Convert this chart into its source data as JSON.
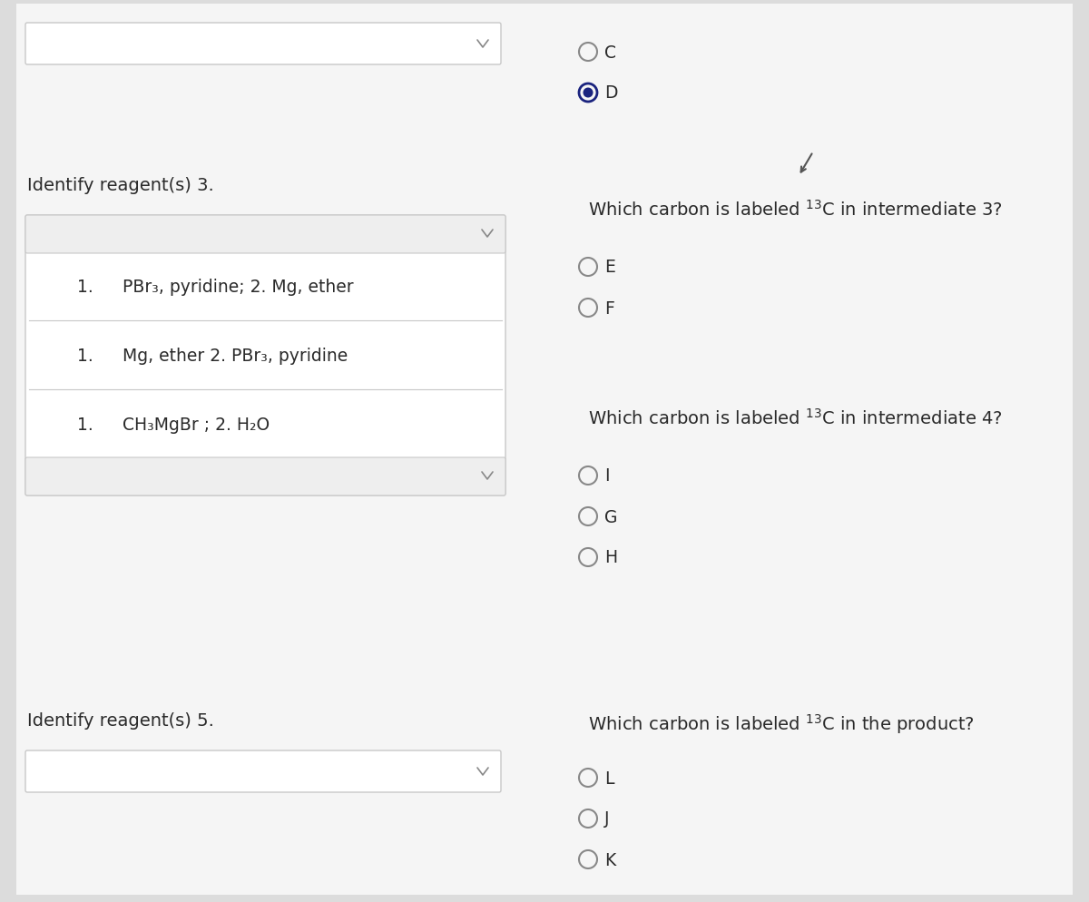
{
  "bg_color": "#dcdcdc",
  "page_color": "#f5f5f5",
  "white": "#ffffff",
  "text_color": "#2a2a2a",
  "border_color": "#c8c8c8",
  "box_bg": "#f8f8f8",
  "strip_bg": "#eeeeee",
  "radio_border": "#333333",
  "radio_filled_color": "#1a237e",
  "title_fontsize": 14,
  "body_fontsize": 13.5,
  "radio_fontsize": 13.5,
  "left_questions": [
    "Identify reagent(s) 3.",
    "Identify reagent(s) 5."
  ],
  "box1_items": [
    {
      "num": "1.",
      "text": "PBr₃, pyridine; 2. Mg, ether"
    },
    {
      "num": "1.",
      "text": "Mg, ether 2. PBr₃, pyridine"
    },
    {
      "num": "1.",
      "text": "CH₃MgBr ; 2. H₂O"
    }
  ],
  "right_sections": [
    {
      "question": "Which carbon is labeled $^{13}$C in intermediate 3?",
      "options": [
        "E",
        "F"
      ]
    },
    {
      "question": "Which carbon is labeled $^{13}$C in intermediate 4?",
      "options": [
        "I",
        "G",
        "H"
      ]
    },
    {
      "question": "Which carbon is labeled $^{13}$C in the product?",
      "options": [
        "L",
        "J",
        "K"
      ]
    }
  ],
  "top_options": [
    {
      "label": "C",
      "filled": false
    },
    {
      "label": "D",
      "filled": true
    }
  ]
}
